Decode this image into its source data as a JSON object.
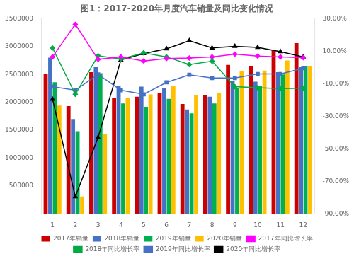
{
  "chart_data": {
    "type": "bar",
    "title": "图1：2017-2020年月度汽车销量及同比变化情况",
    "categories": [
      1,
      2,
      3,
      4,
      5,
      6,
      7,
      8,
      9,
      10,
      11,
      12
    ],
    "series": [
      {
        "name": "2017年销量",
        "color": "#CC0000",
        "values": [
          2510000,
          1930000,
          2540000,
          2080000,
          2100000,
          2160000,
          1970000,
          2130000,
          2670000,
          2650000,
          2930000,
          3060000
        ]
      },
      {
        "name": "2018年销量",
        "color": "#4472C4",
        "values": [
          2800000,
          1700000,
          2630000,
          2300000,
          2280000,
          2260000,
          1870000,
          2100000,
          2380000,
          2370000,
          2540000,
          2630000
        ]
      },
      {
        "name": "2019年销量",
        "color": "#00B050",
        "values": [
          2360000,
          1480000,
          2520000,
          1980000,
          1920000,
          2060000,
          1800000,
          1980000,
          2260000,
          2290000,
          2500000,
          2650000
        ]
      },
      {
        "name": "2020年销量",
        "color": "#FFC000",
        "values": [
          1940000,
          310000,
          1430000,
          2070000,
          2140000,
          2300000,
          2130000,
          2160000,
          2560000,
          2570000,
          2750000,
          2650000
        ]
      },
      {
        "name": "2017年同比增长率",
        "type": "line",
        "axis": "y2",
        "color": "#FF00FF",
        "marker": "diamond",
        "values": [
          0.065,
          0.265,
          0.05,
          0.065,
          0.04,
          0.055,
          0.058,
          0.065,
          0.082,
          0.07,
          0.065,
          0.06
        ]
      },
      {
        "name": "2018年同比增长率",
        "type": "line",
        "axis": "y2",
        "color": "#00AA44",
        "marker": "diamond",
        "values": [
          0.12,
          -0.165,
          0.072,
          0.052,
          0.09,
          0.065,
          0.018,
          0.038,
          -0.118,
          -0.125,
          -0.13,
          -0.128
        ]
      },
      {
        "name": "2019年同比增长率",
        "type": "line",
        "axis": "y2",
        "color": "#4472C4",
        "marker": "square",
        "values": [
          -0.118,
          -0.14,
          -0.043,
          -0.14,
          -0.165,
          -0.092,
          -0.045,
          -0.065,
          -0.065,
          -0.04,
          -0.04,
          -0.005
        ]
      },
      {
        "name": "2020年同比增长率",
        "type": "line",
        "axis": "y2",
        "color": "#000000",
        "marker": "triangle",
        "values": [
          -0.195,
          -0.795,
          -0.43,
          0.046,
          0.085,
          0.115,
          0.165,
          0.12,
          0.13,
          0.123,
          0.097,
          0.065
        ]
      }
    ],
    "ylim": [
      0,
      3500000
    ],
    "yticks": [
      500000,
      1000000,
      1500000,
      2000000,
      2500000,
      3000000,
      3500000
    ],
    "y2lim": [
      -0.9,
      0.3
    ],
    "y2ticks": [
      {
        "value": 0.3,
        "label": "30.00%"
      },
      {
        "value": 0.1,
        "label": "10.00%"
      },
      {
        "value": -0.1,
        "label": "-10.00%"
      },
      {
        "value": -0.3,
        "label": "-30.00%"
      },
      {
        "value": -0.5,
        "label": "-50.00%"
      },
      {
        "value": -0.7,
        "label": "-70.00%"
      },
      {
        "value": -0.9,
        "label": "-90.00%"
      }
    ],
    "grid": false,
    "legend": "bottom"
  }
}
